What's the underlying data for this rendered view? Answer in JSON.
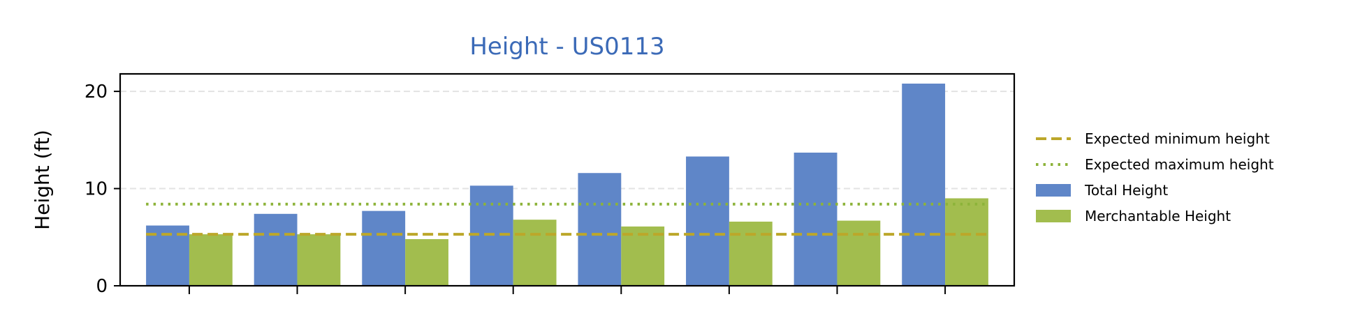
{
  "chart_data": {
    "type": "bar",
    "title": "Height - US0113",
    "title_color": "#3b6ab7",
    "xlabel": "",
    "ylabel": "Height (ft)",
    "ylim": [
      0,
      21.8
    ],
    "yticks": [
      0,
      10,
      20
    ],
    "ytick_labels": [
      "0",
      "10",
      "20"
    ],
    "grid": "y-dashed",
    "legend_position": "outside-right",
    "category_count": 8,
    "series": [
      {
        "name": "Total Height",
        "color": "#5f86c8",
        "values": [
          6.2,
          7.4,
          7.7,
          10.3,
          11.6,
          13.3,
          13.7,
          20.8
        ]
      },
      {
        "name": "Merchantable Height",
        "color": "#a2bd4e",
        "values": [
          5.3,
          5.3,
          4.8,
          6.8,
          6.1,
          6.6,
          6.7,
          9.0
        ]
      }
    ],
    "reference_lines": [
      {
        "name": "Expected minimum height",
        "value": 5.3,
        "style": "dashed",
        "color": "#bca72a"
      },
      {
        "name": "Expected maximum height",
        "value": 8.4,
        "style": "dotted",
        "color": "#8db33a"
      }
    ]
  }
}
